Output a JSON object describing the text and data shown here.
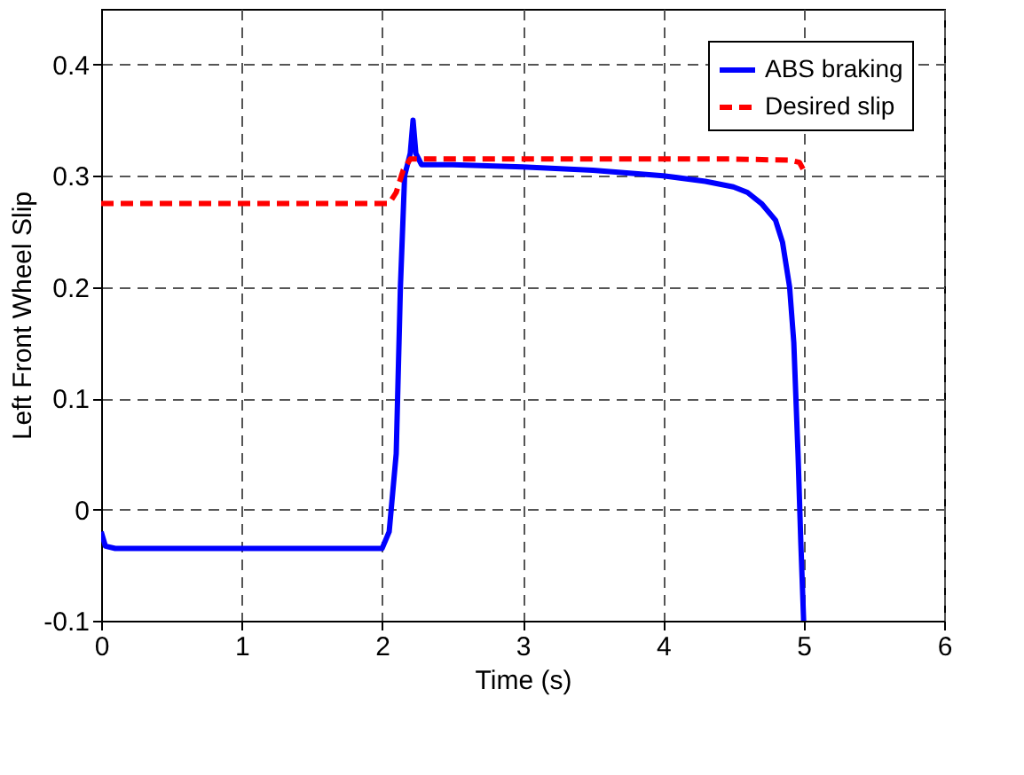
{
  "chart_data": {
    "type": "line",
    "xlabel": "Time (s)",
    "ylabel": "Left Front Wheel Slip",
    "xlim": [
      0,
      6
    ],
    "xticks": [
      0,
      1,
      2,
      3,
      4,
      5,
      6
    ],
    "ylim": [
      -0.1,
      0.45
    ],
    "yticks": [
      -0.1,
      0,
      0.1,
      0.2,
      0.3,
      0.4
    ],
    "grid": true,
    "legend": "top right",
    "series": [
      {
        "name": "ABS braking",
        "color": "#0000ff",
        "line_style": "solid",
        "x": [
          0,
          0.03,
          0.1,
          0.5,
          1,
          1.5,
          2,
          2.05,
          2.1,
          2.13,
          2.16,
          2.2,
          2.22,
          2.24,
          2.28,
          2.35,
          2.5,
          3,
          3.5,
          4,
          4.3,
          4.5,
          4.6,
          4.7,
          4.8,
          4.85,
          4.9,
          4.93,
          4.96,
          4.98,
          5.0
        ],
        "values": [
          -0.02,
          -0.033,
          -0.035,
          -0.035,
          -0.035,
          -0.035,
          -0.035,
          -0.02,
          0.05,
          0.2,
          0.3,
          0.32,
          0.35,
          0.32,
          0.31,
          0.31,
          0.31,
          0.308,
          0.305,
          0.3,
          0.295,
          0.29,
          0.285,
          0.275,
          0.26,
          0.24,
          0.2,
          0.15,
          0.05,
          -0.03,
          -0.1
        ]
      },
      {
        "name": "Desired slip",
        "color": "#ff0000",
        "line_style": "dashed",
        "x": [
          0,
          1,
          2.05,
          2.1,
          2.15,
          2.2,
          3,
          4,
          4.5,
          4.9,
          4.97,
          5.0
        ],
        "values": [
          0.275,
          0.275,
          0.275,
          0.285,
          0.305,
          0.315,
          0.315,
          0.315,
          0.315,
          0.314,
          0.312,
          0.305
        ]
      }
    ]
  }
}
